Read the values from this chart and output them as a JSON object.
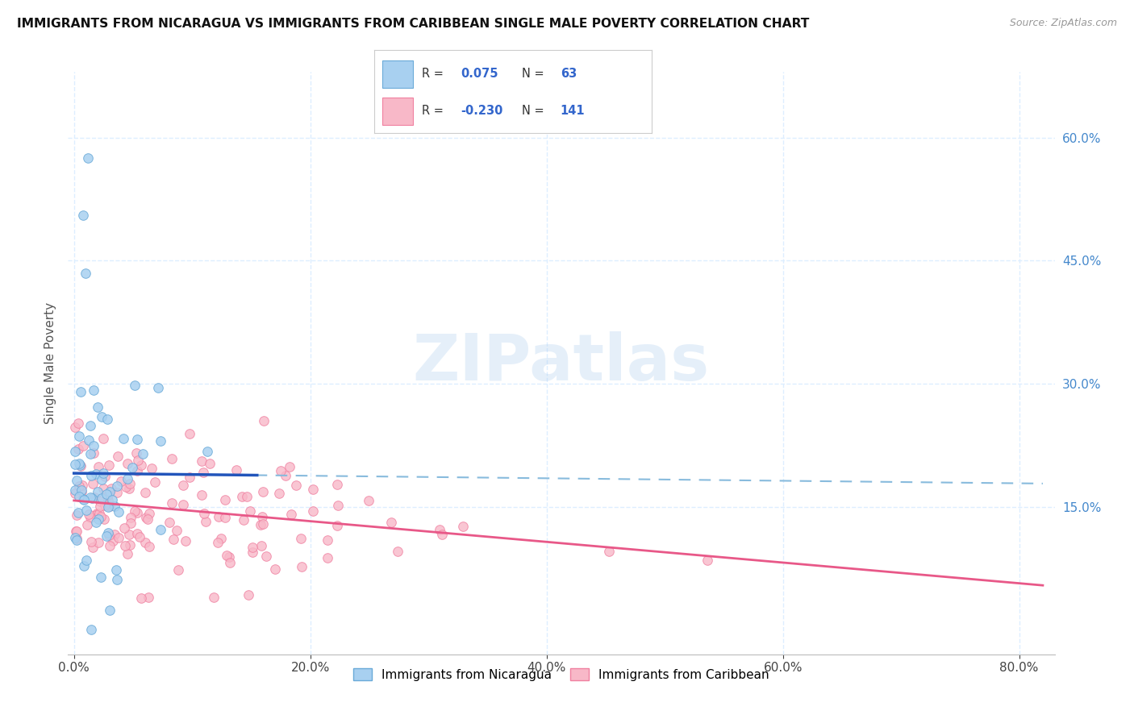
{
  "title": "IMMIGRANTS FROM NICARAGUA VS IMMIGRANTS FROM CARIBBEAN SINGLE MALE POVERTY CORRELATION CHART",
  "source": "Source: ZipAtlas.com",
  "ylabel_label": "Single Male Poverty",
  "x_tick_labels": [
    "0.0%",
    "20.0%",
    "40.0%",
    "60.0%",
    "80.0%"
  ],
  "x_tick_values": [
    0.0,
    0.2,
    0.4,
    0.6,
    0.8
  ],
  "y_tick_labels": [
    "15.0%",
    "30.0%",
    "45.0%",
    "60.0%"
  ],
  "y_tick_values": [
    0.15,
    0.3,
    0.45,
    0.6
  ],
  "xlim": [
    -0.005,
    0.83
  ],
  "ylim": [
    -0.03,
    0.68
  ],
  "nicaragua_color": "#A8D0F0",
  "caribbean_color": "#F8B8C8",
  "nicaragua_edge": "#6AAAD8",
  "caribbean_edge": "#F080A0",
  "trendline_nicaragua_solid_color": "#2255BB",
  "trendline_caribbean_color": "#E85888",
  "trendline_dashed_color": "#88BBDD",
  "background_color": "#FFFFFF",
  "grid_color": "#DDEEFF",
  "legend1_label": "Immigrants from Nicaragua",
  "legend2_label": "Immigrants from Caribbean",
  "watermark": "ZIPatlas",
  "r1": 0.075,
  "n1": 63,
  "r2": -0.23,
  "n2": 141,
  "seed": 12345
}
